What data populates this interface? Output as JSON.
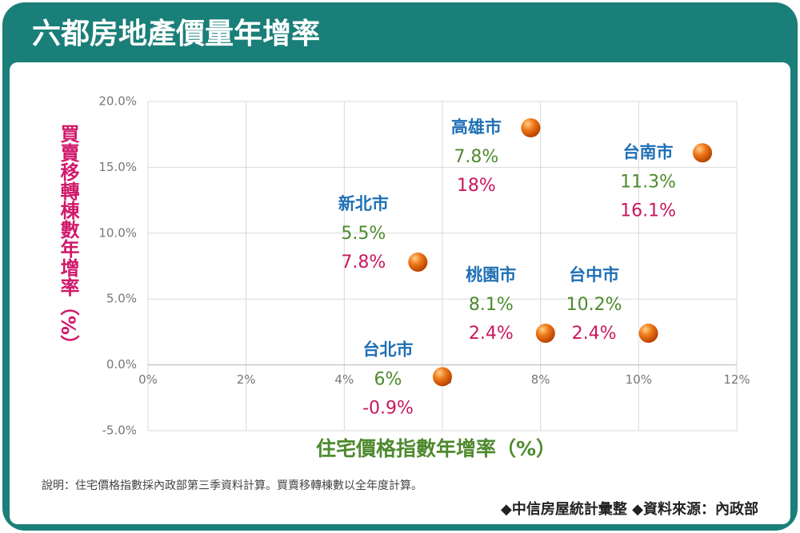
{
  "chart_data": {
    "type": "scatter",
    "title": "六都房地產價量年增率",
    "x_label": "住宅價格指數年增率（%）",
    "y_label": "買賣移轉棟數年增率（%）",
    "point_labels": [
      "新北市",
      "高雄市",
      "台南市",
      "桃園市",
      "台中市",
      "台北市"
    ],
    "x": [
      5.5,
      7.8,
      11.3,
      8.1,
      10.2,
      6
    ],
    "values": [
      7.8,
      18,
      16.1,
      2.4,
      2.4,
      -0.9
    ],
    "x_labels": [
      "5.5%",
      "7.8%",
      "11.3%",
      "8.1%",
      "10.2%",
      "6%"
    ],
    "value_labels": [
      "7.8%",
      "18%",
      "16.1%",
      "2.4%",
      "2.4%",
      "-0.9%"
    ],
    "color": "#e8650c",
    "xlim": [
      0,
      12
    ],
    "xticks": [
      {
        "value": 0,
        "label": "0%"
      },
      {
        "value": 2,
        "label": "2%"
      },
      {
        "value": 4,
        "label": "4%"
      },
      {
        "value": 6,
        "label": "6%"
      },
      {
        "value": 8,
        "label": "8%"
      },
      {
        "value": 10,
        "label": "10%"
      },
      {
        "value": 12,
        "label": "12%"
      }
    ],
    "ylim": [
      -5,
      20
    ],
    "yticks": [
      {
        "value": -5,
        "label": "-5.0%"
      },
      {
        "value": 0,
        "label": "0.0%"
      },
      {
        "value": 5,
        "label": "5.0%"
      },
      {
        "value": 10,
        "label": "10.0%"
      },
      {
        "value": 15,
        "label": "15.0%"
      },
      {
        "value": 20,
        "label": "20.0%"
      }
    ],
    "grid": true,
    "note": "說明：住宅價格指數採內政部第三季資料計算。買賣移轉棟數以全年度計算。",
    "source": "◆中信房屋統計彙整 ◆資料來源：內政部"
  }
}
